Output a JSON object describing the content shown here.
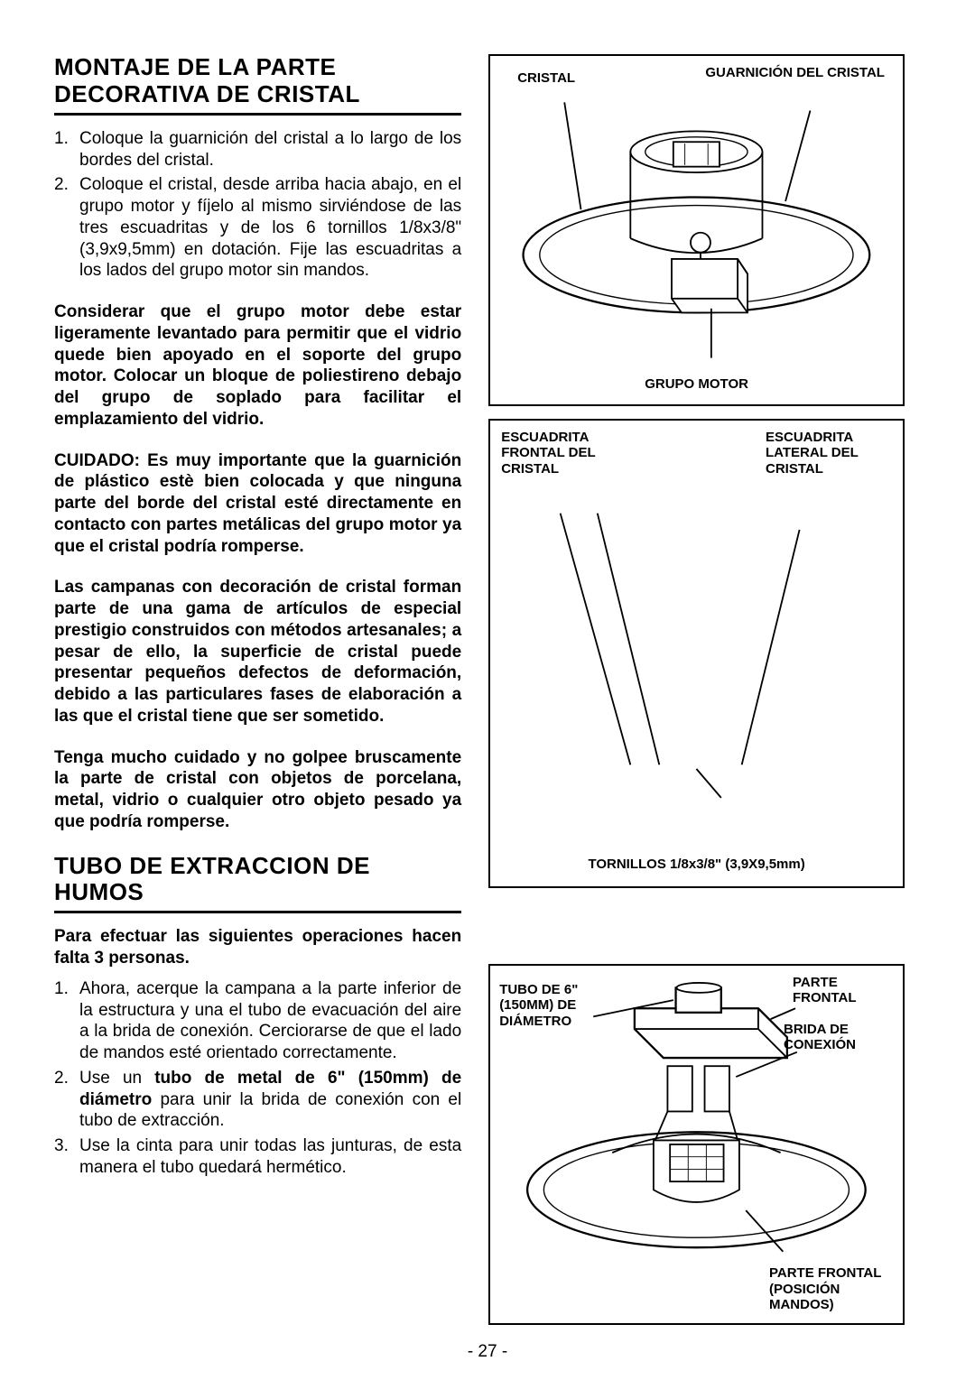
{
  "section1": {
    "title": "MONTAJE DE LA PARTE DECORATIVA DE CRISTAL",
    "steps": [
      "Coloque la guarnición del cristal a lo largo de los bordes del cristal.",
      "Coloque el cristal, desde arriba hacia abajo, en el grupo motor y fíjelo al mismo sirviéndose de las tres escuadritas y de los 6 tornillos 1/8x3/8\" (3,9x9,5mm) en dotación. Fije las escuadritas a los lados del grupo motor sin mandos."
    ],
    "bold_paras": [
      "Considerar que el grupo motor debe estar ligeramente levantado para permitir que el vidrio quede bien apoyado en el soporte del grupo motor. Colocar un bloque de poliestireno debajo del grupo de soplado para facilitar el emplazamiento del vidrio.",
      "CUIDADO: Es muy importante que la guarnición de plástico estè bien colocada y que ninguna parte del borde del cristal esté directamente en contacto con partes metálicas del grupo motor ya que el cristal podría romperse.",
      "Las campanas con decoración de cristal forman parte de una gama de artículos de especial prestigio construidos con métodos artesanales; a pesar de ello, la superficie de cristal puede presentar pequeños defectos de deformación, debido a las particulares fases de elaboración a las que el cristal tiene que ser sometido.",
      "Tenga mucho cuidado y no golpee bruscamente la parte de cristal con objetos de porcelana, metal, vidrio o cualquier otro objeto pesado ya que podría romperse."
    ]
  },
  "section2": {
    "title": "TUBO DE EXTRACCION DE HUMOS",
    "intro": "Para efectuar las siguientes operaciones hacen falta 3 personas.",
    "steps": [
      "Ahora, acerque la campana a la parte inferior de la estructura y una el tubo de evacuación del aire a la brida de conexión. Cerciorarse de que el lado de mandos esté orientado correctamente.",
      "Use un <b>tubo de metal de 6\" (150mm) de diámetro</b> para unir la brida de conexión con el tubo de extracción.",
      "Use la cinta para unir todas las junturas, de esta manera el tubo quedará hermético."
    ]
  },
  "fig1_labels": {
    "cristal": "CRISTAL",
    "guarnicion": "GUARNICIÓN DEL CRISTAL",
    "grupo_motor": "GRUPO MOTOR"
  },
  "fig2_labels": {
    "escuadrita_frontal": "ESCUADRITA FRONTAL DEL CRISTAL",
    "escuadrita_lateral": "ESCUADRITA LATERAL DEL CRISTAL",
    "tornillos": "TORNILLOS 1/8x3/8\" (3,9X9,5mm)"
  },
  "fig3_labels": {
    "tubo": "TUBO DE 6\" (150MM) DE DIÁMETRO",
    "parte_frontal_top": "PARTE FRONTAL",
    "brida": "BRIDA DE CONEXIÓN",
    "parte_frontal_bottom": "PARTE FRONTAL (POSICIÓN MANDOS)"
  },
  "page_number": "- 27 -"
}
